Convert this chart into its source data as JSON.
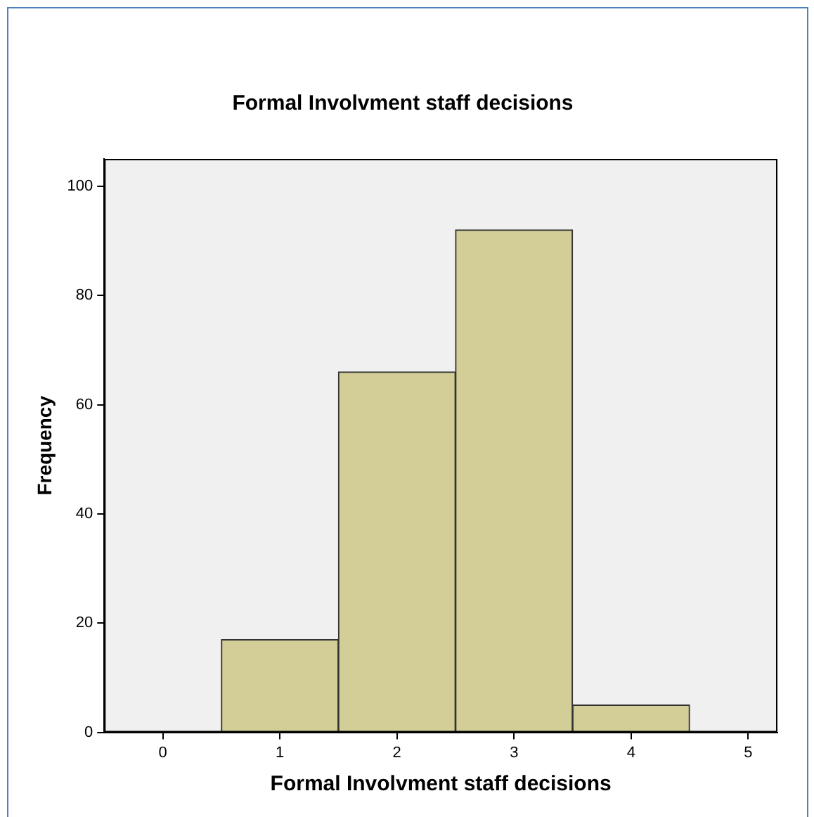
{
  "chart_data": {
    "type": "histogram",
    "title": "Formal Involvment staff decisions",
    "xlabel": "Formal Involvment staff decisions",
    "ylabel": "Frequency",
    "bins": [
      0.5,
      1.5,
      2.5,
      3.5,
      4.5
    ],
    "values": [
      17,
      66,
      92,
      5
    ],
    "color": "#d3ce97",
    "xlim": [
      -0.5,
      5.25
    ],
    "xticks": [
      0,
      1,
      2,
      3,
      4,
      5
    ],
    "ylim": [
      0,
      105
    ],
    "yticks": [
      0,
      20,
      40,
      60,
      80,
      100
    ],
    "grid": false,
    "legend": false
  }
}
